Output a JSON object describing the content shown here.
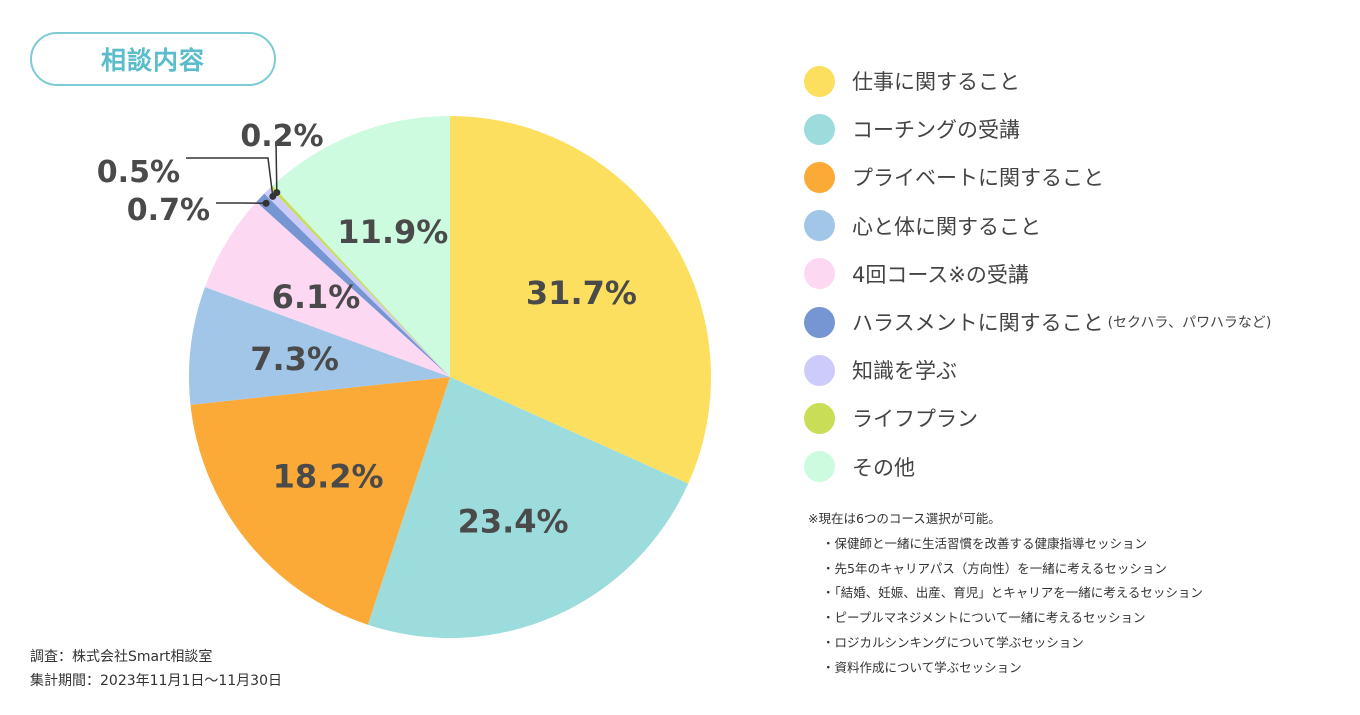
{
  "title": "相談内容",
  "chart_data": {
    "type": "pie",
    "title": "相談内容",
    "slices": [
      {
        "label": "仕事に関すること",
        "value": 31.7,
        "display": "31.7%",
        "color": "#fddf60"
      },
      {
        "label": "コーチングの受講",
        "value": 23.4,
        "display": "23.4%",
        "color": "#9ddcdc"
      },
      {
        "label": "プライベートに関すること",
        "value": 18.2,
        "display": "18.2%",
        "color": "#fbaa38"
      },
      {
        "label": "心と体に関すること",
        "value": 7.3,
        "display": "7.3%",
        "color": "#a1c6e8"
      },
      {
        "label": "4回コース※の受講",
        "value": 6.1,
        "display": "6.1%",
        "color": "#fdd8f2"
      },
      {
        "label": "ハラスメントに関すること",
        "note": "(セクハラ、パワハラなど)",
        "value": 0.7,
        "display": "0.7%",
        "color": "#7596d2"
      },
      {
        "label": "知識を学ぶ",
        "value": 0.5,
        "display": "0.5%",
        "color": "#cccbf9"
      },
      {
        "label": "ライフプラン",
        "value": 0.2,
        "display": "0.2%",
        "color": "#c9de56"
      },
      {
        "label": "その他",
        "value": 11.9,
        "display": "11.9%",
        "color": "#cdfbdf"
      }
    ]
  },
  "footnote": {
    "heading": "※現在は6つのコース選択が可能。",
    "items": [
      "保健師と一緒に生活習慣を改善する健康指導セッション",
      "先5年のキャリアパス（方向性）を一緒に考えるセッション",
      "「結婚、妊娠、出産、育児」とキャリアを一緒に考えるセッション",
      "ピープルマネジメントについて一緒に考えるセッション",
      "ロジカルシンキングについて学ぶセッション",
      "資料作成について学ぶセッション"
    ]
  },
  "source": {
    "survey": "調査：株式会社Smart相談室",
    "period": "集計期間：2023年11月1日〜11月30日"
  }
}
